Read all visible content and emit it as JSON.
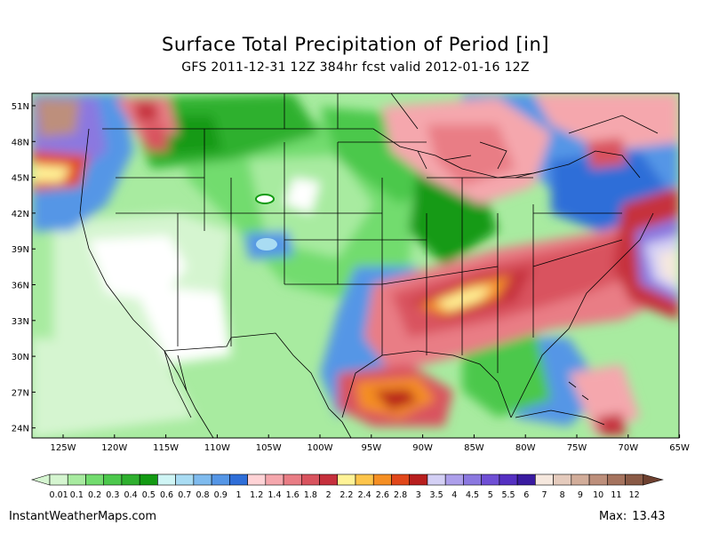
{
  "title": "Surface Total Precipitation of Period [in]",
  "subtitle": "GFS 2011-12-31 12Z 384hr fcst valid 2012-01-16 12Z",
  "lat_labels": [
    "51N",
    "48N",
    "45N",
    "42N",
    "39N",
    "36N",
    "33N",
    "30N",
    "27N",
    "24N"
  ],
  "lon_labels": [
    "125W",
    "120W",
    "115W",
    "110W",
    "105W",
    "100W",
    "95W",
    "90W",
    "85W",
    "80W",
    "75W",
    "70W",
    "65W"
  ],
  "colorbar": {
    "labels": [
      "0.01",
      "0.1",
      "0.2",
      "0.3",
      "0.4",
      "0.5",
      "0.6",
      "0.7",
      "0.8",
      "0.9",
      "1",
      "1.2",
      "1.4",
      "1.6",
      "1.8",
      "2",
      "2.2",
      "2.4",
      "2.6",
      "2.8",
      "3",
      "3.5",
      "4",
      "4.5",
      "5",
      "5.5",
      "6",
      "7",
      "8",
      "9",
      "10",
      "11",
      "12"
    ],
    "colors": [
      "#d5f5d0",
      "#a8eba0",
      "#72dc6e",
      "#4cc84c",
      "#2fb02f",
      "#139a13",
      "#cff5f5",
      "#a9dcf3",
      "#7fbbee",
      "#5596e6",
      "#2f6ed8",
      "#ffd3d6",
      "#f5a7ad",
      "#e97d85",
      "#d9535e",
      "#c6303c",
      "#fff397",
      "#fdc54b",
      "#f58f23",
      "#e1471a",
      "#b81e1e",
      "#d4d0f5",
      "#ad9feb",
      "#8b78e0",
      "#6f4fd5",
      "#5530c2",
      "#3a1ba0",
      "#f6e8de",
      "#e5cbbd",
      "#d2ad9a",
      "#bd8f7b",
      "#a5735e",
      "#8a5a46",
      "#6e4130"
    ]
  },
  "footer": {
    "site": "InstantWeatherMaps.com",
    "max_label": "Max:",
    "max_value": "13.43"
  }
}
